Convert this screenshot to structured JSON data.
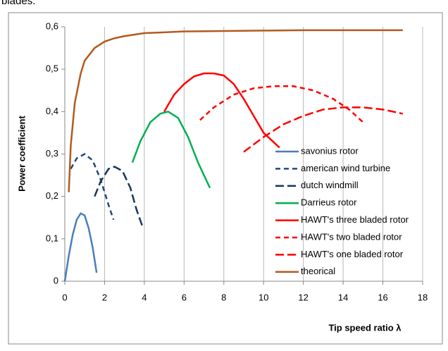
{
  "caption": "blades.",
  "chart_data": {
    "type": "line",
    "xlabel": "Tip speed ratio λ",
    "ylabel": "Power coefficient",
    "xlim": [
      0,
      18
    ],
    "xticks": [
      0,
      2,
      4,
      6,
      8,
      10,
      12,
      14,
      16,
      18
    ],
    "ylim": [
      0,
      0.6
    ],
    "yticks": [
      0,
      {
        "value": 0.1,
        "label": "0,1"
      },
      {
        "value": 0.2,
        "label": "0,2"
      },
      {
        "value": 0.3,
        "label": "0,3"
      },
      {
        "value": 0.4,
        "label": "0,4"
      },
      {
        "value": 0.5,
        "label": "0,5"
      },
      {
        "value": 0.6,
        "label": "0,6"
      }
    ],
    "grid": "x",
    "series": [
      {
        "name": "savonius rotor",
        "color": "#4a7ebb",
        "style": "solid",
        "x": [
          0,
          0.2,
          0.4,
          0.6,
          0.8,
          1.0,
          1.2,
          1.4,
          1.6
        ],
        "values": [
          0,
          0.06,
          0.11,
          0.145,
          0.16,
          0.155,
          0.125,
          0.08,
          0.02
        ]
      },
      {
        "name": "american wind turbine",
        "color": "#1f497d",
        "style": "dashed",
        "x": [
          0.3,
          0.6,
          1.0,
          1.4,
          1.8,
          2.2,
          2.45
        ],
        "values": [
          0.265,
          0.29,
          0.3,
          0.285,
          0.24,
          0.18,
          0.145
        ]
      },
      {
        "name": "dutch windmill",
        "color": "#17375e",
        "style": "longdash",
        "x": [
          1.5,
          1.8,
          2.2,
          2.5,
          2.9,
          3.3,
          3.6,
          3.9
        ],
        "values": [
          0.2,
          0.235,
          0.265,
          0.27,
          0.26,
          0.22,
          0.17,
          0.13
        ]
      },
      {
        "name": "Darrieus rotor",
        "color": "#00b050",
        "style": "solid",
        "x": [
          3.4,
          3.8,
          4.3,
          4.8,
          5.2,
          5.7,
          6.2,
          6.7,
          7.3
        ],
        "values": [
          0.28,
          0.33,
          0.375,
          0.395,
          0.4,
          0.385,
          0.34,
          0.28,
          0.22
        ]
      },
      {
        "name": "HAWT's three bladed rotor",
        "color": "#ff0000",
        "style": "solid",
        "x": [
          5.0,
          5.5,
          6.0,
          6.5,
          7.0,
          7.5,
          8.0,
          8.5,
          9.0,
          9.5,
          10.0,
          10.8
        ],
        "values": [
          0.4,
          0.44,
          0.465,
          0.483,
          0.49,
          0.49,
          0.485,
          0.465,
          0.43,
          0.39,
          0.35,
          0.315
        ]
      },
      {
        "name": "HAWT's two bladed rotor",
        "color": "#ff0000",
        "style": "dashed",
        "x": [
          6.8,
          7.5,
          8.5,
          9.5,
          10.5,
          11.5,
          12.5,
          13.5,
          14.3,
          15.0
        ],
        "values": [
          0.38,
          0.41,
          0.44,
          0.455,
          0.46,
          0.46,
          0.45,
          0.43,
          0.405,
          0.375
        ]
      },
      {
        "name": "HAWT's one bladed rotor",
        "color": "#ff0000",
        "style": "longdash",
        "x": [
          9.0,
          10,
          11,
          12,
          13,
          14,
          15,
          16,
          17
        ],
        "values": [
          0.305,
          0.34,
          0.37,
          0.39,
          0.405,
          0.41,
          0.41,
          0.405,
          0.395
        ]
      },
      {
        "name": "theorical",
        "color": "#b35a1f",
        "style": "solid",
        "x": [
          0.2,
          0.3,
          0.5,
          0.8,
          1.0,
          1.5,
          2,
          2.5,
          3,
          4,
          5,
          6,
          8,
          10,
          12,
          14,
          17
        ],
        "values": [
          0.21,
          0.32,
          0.42,
          0.49,
          0.52,
          0.55,
          0.565,
          0.573,
          0.578,
          0.585,
          0.587,
          0.589,
          0.59,
          0.591,
          0.592,
          0.592,
          0.592
        ]
      }
    ]
  }
}
